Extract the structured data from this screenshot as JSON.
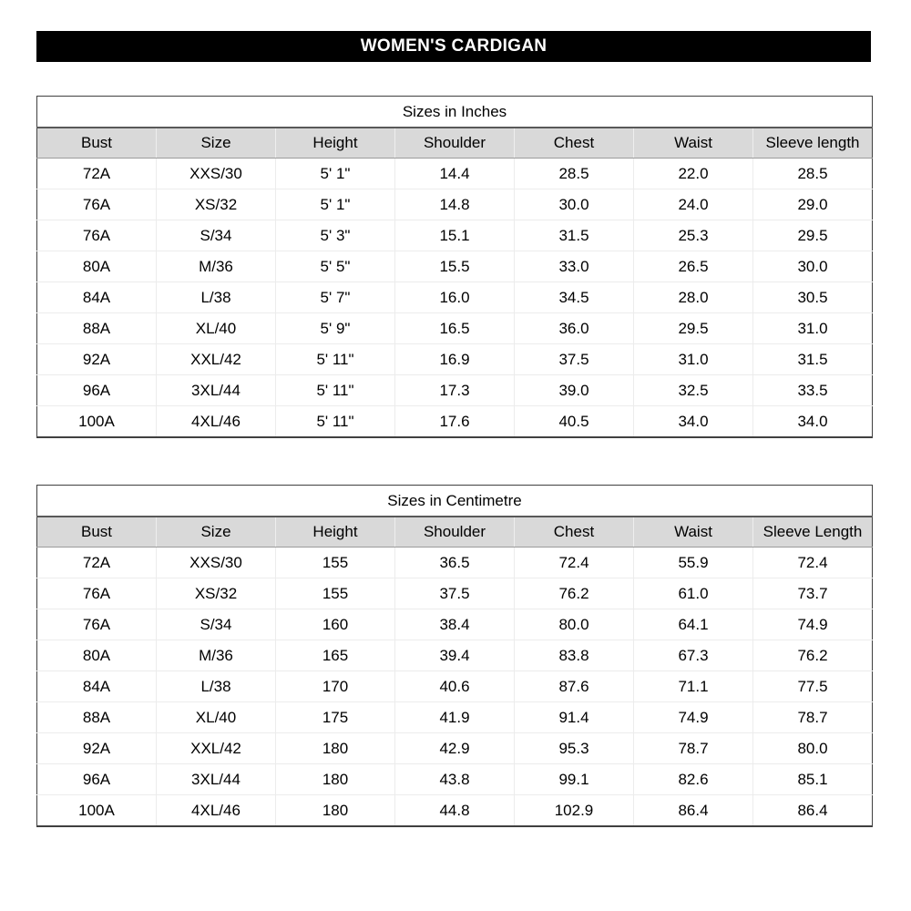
{
  "banner": {
    "title": "WOMEN'S CARDIGAN",
    "background_color": "#000000",
    "text_color": "#ffffff"
  },
  "colors": {
    "header_row_background": "#d9d9d9",
    "table_border": "#404040",
    "row_divider": "#ececec"
  },
  "tables": [
    {
      "title": "Sizes in Inches",
      "headers": [
        "Bust",
        "Size",
        "Height",
        "Shoulder",
        "Chest",
        "Waist",
        "Sleeve length"
      ],
      "rows": [
        [
          "72A",
          "XXS/30",
          "5' 1\"",
          "14.4",
          "28.5",
          "22.0",
          "28.5"
        ],
        [
          "76A",
          "XS/32",
          "5' 1\"",
          "14.8",
          "30.0",
          "24.0",
          "29.0"
        ],
        [
          "76A",
          "S/34",
          "5' 3\"",
          "15.1",
          "31.5",
          "25.3",
          "29.5"
        ],
        [
          "80A",
          "M/36",
          "5' 5\"",
          "15.5",
          "33.0",
          "26.5",
          "30.0"
        ],
        [
          "84A",
          "L/38",
          "5' 7\"",
          "16.0",
          "34.5",
          "28.0",
          "30.5"
        ],
        [
          "88A",
          "XL/40",
          "5' 9\"",
          "16.5",
          "36.0",
          "29.5",
          "31.0"
        ],
        [
          "92A",
          "XXL/42",
          "5' 11\"",
          "16.9",
          "37.5",
          "31.0",
          "31.5"
        ],
        [
          "96A",
          "3XL/44",
          "5' 11\"",
          "17.3",
          "39.0",
          "32.5",
          "33.5"
        ],
        [
          "100A",
          "4XL/46",
          "5' 11\"",
          "17.6",
          "40.5",
          "34.0",
          "34.0"
        ]
      ]
    },
    {
      "title": "Sizes in Centimetre",
      "headers": [
        "Bust",
        "Size",
        "Height",
        "Shoulder",
        "Chest",
        "Waist",
        "Sleeve Length"
      ],
      "rows": [
        [
          "72A",
          "XXS/30",
          "155",
          "36.5",
          "72.4",
          "55.9",
          "72.4"
        ],
        [
          "76A",
          "XS/32",
          "155",
          "37.5",
          "76.2",
          "61.0",
          "73.7"
        ],
        [
          "76A",
          "S/34",
          "160",
          "38.4",
          "80.0",
          "64.1",
          "74.9"
        ],
        [
          "80A",
          "M/36",
          "165",
          "39.4",
          "83.8",
          "67.3",
          "76.2"
        ],
        [
          "84A",
          "L/38",
          "170",
          "40.6",
          "87.6",
          "71.1",
          "77.5"
        ],
        [
          "88A",
          "XL/40",
          "175",
          "41.9",
          "91.4",
          "74.9",
          "78.7"
        ],
        [
          "92A",
          "XXL/42",
          "180",
          "42.9",
          "95.3",
          "78.7",
          "80.0"
        ],
        [
          "96A",
          "3XL/44",
          "180",
          "43.8",
          "99.1",
          "82.6",
          "85.1"
        ],
        [
          "100A",
          "4XL/46",
          "180",
          "44.8",
          "102.9",
          "86.4",
          "86.4"
        ]
      ]
    }
  ]
}
